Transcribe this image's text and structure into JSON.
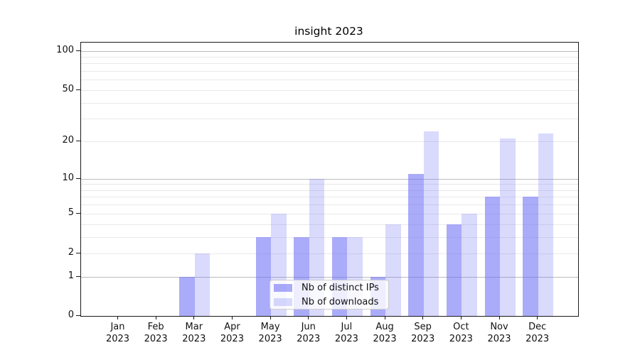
{
  "chart_data": {
    "type": "bar",
    "title": "insight 2023",
    "categories": [
      "Jan 2023",
      "Feb 2023",
      "Mar 2023",
      "Apr 2023",
      "May 2023",
      "Jun 2023",
      "Jul 2023",
      "Aug 2023",
      "Sep 2023",
      "Oct 2023",
      "Nov 2023",
      "Dec 2023"
    ],
    "series": [
      {
        "name": "Nb of distinct IPs",
        "color": "rgba(109,111,245,0.58)",
        "values": [
          0,
          0,
          1,
          0,
          3,
          3,
          3,
          1,
          11,
          4,
          7,
          7
        ]
      },
      {
        "name": "Nb of downloads",
        "color": "rgba(109,111,245,0.26)",
        "values": [
          0,
          0,
          2,
          0,
          5,
          10,
          3,
          4,
          24,
          5,
          21,
          23
        ]
      }
    ],
    "yscale": "log1p",
    "ylim": [
      0,
      115
    ],
    "yticks": [
      0,
      1,
      2,
      5,
      10,
      20,
      50,
      100
    ],
    "grid": {
      "major": [
        1,
        10,
        100
      ],
      "minor": [
        2,
        3,
        4,
        5,
        6,
        7,
        8,
        9,
        20,
        30,
        40,
        50,
        60,
        70,
        80,
        90
      ]
    },
    "legend_position": "lower center",
    "colors": {
      "major_grid": "#bbbbbb",
      "minor_grid": "#e9e9e9",
      "axis": "#1a1a1a"
    }
  }
}
